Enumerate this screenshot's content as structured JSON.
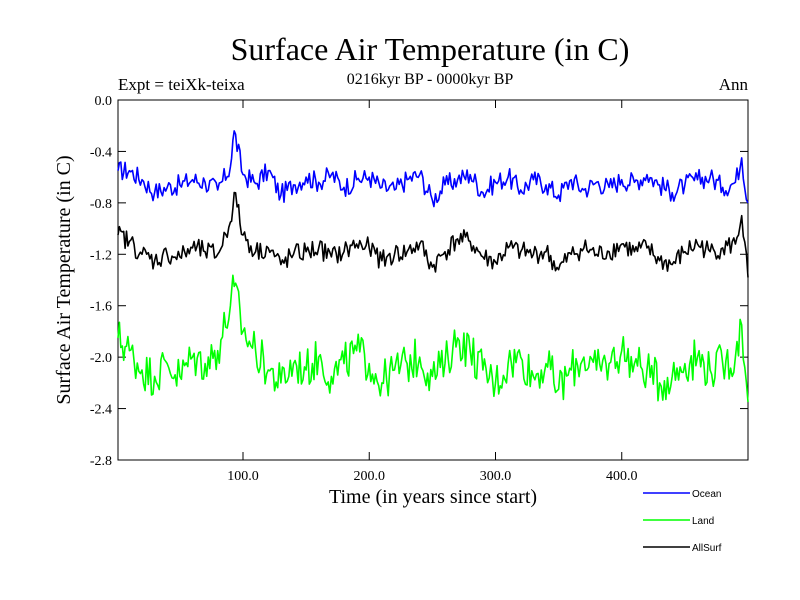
{
  "chart_data": {
    "type": "line",
    "title": "Surface Air Temperature (in C)",
    "subtitle": "0216kyr BP - 0000kyr BP",
    "expt_label": "Expt = teiXk-teixa",
    "season_label": "Ann",
    "xlabel": "Time (in years since start)",
    "ylabel": "Surface Air Temperature (in C)",
    "xlim": [
      1,
      500
    ],
    "ylim": [
      -2.8,
      0.0
    ],
    "x_ticks": [
      100,
      200,
      300,
      400
    ],
    "x_tick_labels": [
      "100.0",
      "200.0",
      "300.0",
      "400.0"
    ],
    "y_ticks": [
      0.0,
      -0.4,
      -0.8,
      -1.2,
      -1.6,
      -2.0,
      -2.4,
      -2.8
    ],
    "y_tick_labels": [
      "0.0",
      "-0.4",
      "-0.8",
      "-1.2",
      "-1.6",
      "-2.0",
      "-2.4",
      "-2.8"
    ],
    "legend_position": "bottom-right, below plot",
    "series": [
      {
        "name": "Ocean",
        "color": "#0000ff",
        "x": [
          1,
          10,
          20,
          30,
          40,
          50,
          60,
          70,
          80,
          90,
          93,
          100,
          110,
          120,
          130,
          140,
          150,
          160,
          170,
          180,
          190,
          200,
          210,
          220,
          230,
          240,
          250,
          260,
          270,
          280,
          290,
          300,
          310,
          320,
          330,
          340,
          350,
          360,
          370,
          380,
          390,
          400,
          410,
          420,
          430,
          440,
          450,
          460,
          470,
          480,
          490,
          495,
          500
        ],
        "values": [
          -0.55,
          -0.55,
          -0.62,
          -0.72,
          -0.68,
          -0.66,
          -0.62,
          -0.64,
          -0.7,
          -0.52,
          -0.24,
          -0.58,
          -0.65,
          -0.55,
          -0.74,
          -0.66,
          -0.6,
          -0.64,
          -0.58,
          -0.68,
          -0.62,
          -0.6,
          -0.68,
          -0.7,
          -0.62,
          -0.58,
          -0.78,
          -0.66,
          -0.62,
          -0.58,
          -0.72,
          -0.64,
          -0.6,
          -0.7,
          -0.62,
          -0.66,
          -0.74,
          -0.62,
          -0.7,
          -0.64,
          -0.68,
          -0.62,
          -0.64,
          -0.58,
          -0.66,
          -0.72,
          -0.66,
          -0.62,
          -0.6,
          -0.68,
          -0.64,
          -0.45,
          -0.8
        ]
      },
      {
        "name": "Land",
        "color": "#00ff00",
        "x": [
          1,
          10,
          20,
          30,
          40,
          50,
          60,
          70,
          80,
          90,
          93,
          100,
          110,
          120,
          130,
          140,
          150,
          160,
          170,
          180,
          190,
          200,
          210,
          220,
          230,
          240,
          250,
          260,
          270,
          280,
          290,
          300,
          310,
          320,
          330,
          340,
          350,
          360,
          370,
          380,
          390,
          400,
          410,
          420,
          430,
          440,
          450,
          460,
          470,
          480,
          490,
          495,
          500
        ],
        "values": [
          -1.85,
          -1.95,
          -2.1,
          -2.15,
          -2.05,
          -2.15,
          -2.0,
          -2.05,
          -1.95,
          -1.6,
          -1.45,
          -1.8,
          -1.95,
          -2.1,
          -2.2,
          -2.05,
          -2.1,
          -2.0,
          -2.15,
          -2.05,
          -1.95,
          -2.05,
          -2.2,
          -2.1,
          -2.05,
          -2.0,
          -2.15,
          -2.05,
          -1.85,
          -1.95,
          -2.1,
          -2.2,
          -2.05,
          -2.0,
          -2.15,
          -2.05,
          -2.25,
          -2.1,
          -2.0,
          -2.1,
          -2.05,
          -1.95,
          -2.05,
          -2.1,
          -2.2,
          -2.15,
          -2.05,
          -2.0,
          -2.1,
          -2.05,
          -2.0,
          -1.75,
          -2.35
        ]
      },
      {
        "name": "AllSurf",
        "color": "#000000",
        "x": [
          1,
          10,
          20,
          30,
          40,
          50,
          60,
          70,
          80,
          90,
          93,
          100,
          110,
          120,
          130,
          140,
          150,
          160,
          170,
          180,
          190,
          200,
          210,
          220,
          230,
          240,
          250,
          260,
          270,
          280,
          290,
          300,
          310,
          320,
          330,
          340,
          350,
          360,
          370,
          380,
          390,
          400,
          410,
          420,
          430,
          440,
          450,
          460,
          470,
          480,
          490,
          495,
          500
        ],
        "values": [
          -1.05,
          -1.1,
          -1.2,
          -1.25,
          -1.2,
          -1.22,
          -1.15,
          -1.18,
          -1.2,
          -0.95,
          -0.72,
          -1.05,
          -1.18,
          -1.15,
          -1.28,
          -1.2,
          -1.18,
          -1.15,
          -1.22,
          -1.18,
          -1.12,
          -1.15,
          -1.25,
          -1.2,
          -1.18,
          -1.12,
          -1.3,
          -1.18,
          -1.08,
          -1.1,
          -1.22,
          -1.26,
          -1.15,
          -1.18,
          -1.2,
          -1.18,
          -1.32,
          -1.2,
          -1.15,
          -1.2,
          -1.18,
          -1.12,
          -1.18,
          -1.15,
          -1.25,
          -1.28,
          -1.18,
          -1.12,
          -1.18,
          -1.15,
          -1.12,
          -0.9,
          -1.38
        ]
      }
    ]
  }
}
